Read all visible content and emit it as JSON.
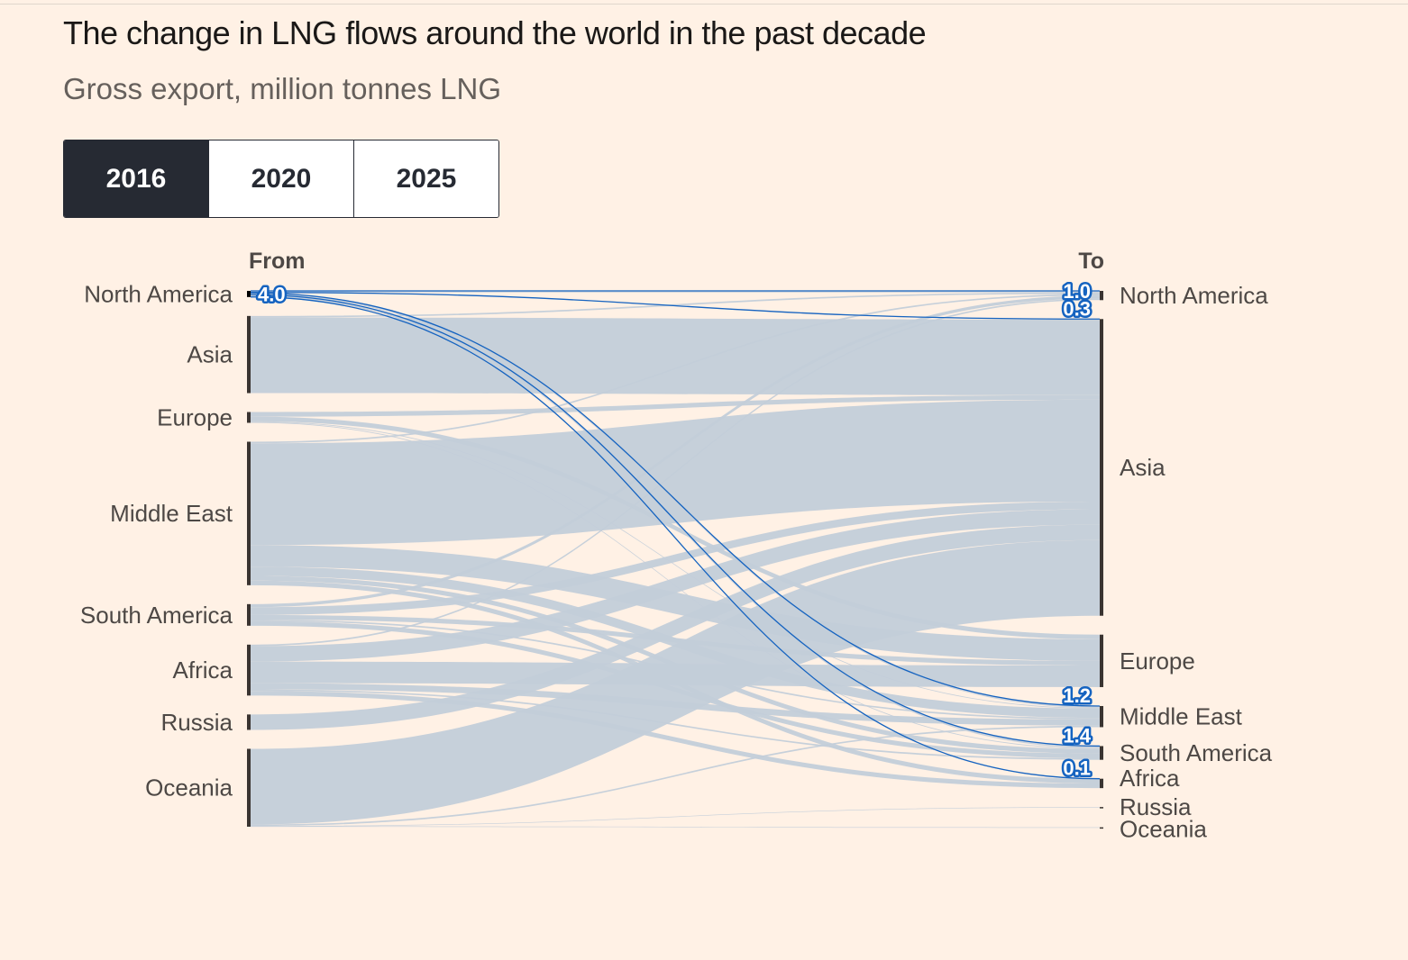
{
  "title": "The change in LNG flows around the world in the past decade",
  "subtitle": "Gross export, million tonnes LNG",
  "tabs": [
    {
      "label": "2016",
      "active": true
    },
    {
      "label": "2020",
      "active": false
    },
    {
      "label": "2025",
      "active": false
    }
  ],
  "chart_data": {
    "type": "sankey",
    "year": "2016",
    "from_label": "From",
    "to_label": "To",
    "units": "million tonnes LNG",
    "regions": [
      "North America",
      "Asia",
      "Europe",
      "Middle East",
      "South America",
      "Africa",
      "Russia",
      "Oceania"
    ],
    "highlight_source": "North America",
    "highlight_color": "#1563c0",
    "flow_color": "#c3cdd9",
    "source_total_label": "4.0",
    "flows": [
      {
        "from": "North America",
        "to": "North America",
        "value": 1.0,
        "label": "1.0"
      },
      {
        "from": "North America",
        "to": "Asia",
        "value": 0.3,
        "label": "0.3"
      },
      {
        "from": "North America",
        "to": "Middle East",
        "value": 1.2,
        "label": "1.2"
      },
      {
        "from": "North America",
        "to": "South America",
        "value": 1.4,
        "label": "1.4"
      },
      {
        "from": "North America",
        "to": "Africa",
        "value": 0.1,
        "label": "0.1"
      },
      {
        "from": "Asia",
        "to": "North America",
        "value": 1
      },
      {
        "from": "Asia",
        "to": "Asia",
        "value": 49
      },
      {
        "from": "Europe",
        "to": "Asia",
        "value": 3
      },
      {
        "from": "Europe",
        "to": "Europe",
        "value": 3
      },
      {
        "from": "Europe",
        "to": "Middle East",
        "value": 0.5
      },
      {
        "from": "Europe",
        "to": "South America",
        "value": 0.5
      },
      {
        "from": "Middle East",
        "to": "North America",
        "value": 1
      },
      {
        "from": "Middle East",
        "to": "Asia",
        "value": 66
      },
      {
        "from": "Middle East",
        "to": "Europe",
        "value": 14
      },
      {
        "from": "Middle East",
        "to": "Middle East",
        "value": 6
      },
      {
        "from": "Middle East",
        "to": "South America",
        "value": 3
      },
      {
        "from": "Middle East",
        "to": "Africa",
        "value": 3
      },
      {
        "from": "South America",
        "to": "North America",
        "value": 2
      },
      {
        "from": "South America",
        "to": "Asia",
        "value": 5
      },
      {
        "from": "South America",
        "to": "Europe",
        "value": 3
      },
      {
        "from": "South America",
        "to": "Middle East",
        "value": 1
      },
      {
        "from": "South America",
        "to": "South America",
        "value": 3
      },
      {
        "from": "Africa",
        "to": "North America",
        "value": 1
      },
      {
        "from": "Africa",
        "to": "Asia",
        "value": 10
      },
      {
        "from": "Africa",
        "to": "Europe",
        "value": 14
      },
      {
        "from": "Africa",
        "to": "Middle East",
        "value": 4
      },
      {
        "from": "Africa",
        "to": "South America",
        "value": 1
      },
      {
        "from": "Africa",
        "to": "Africa",
        "value": 3
      },
      {
        "from": "Russia",
        "to": "Asia",
        "value": 10
      },
      {
        "from": "Oceania",
        "to": "Asia",
        "value": 49
      },
      {
        "from": "Oceania",
        "to": "Middle East",
        "value": 1
      },
      {
        "from": "Oceania",
        "to": "Russia",
        "value": 0.2
      },
      {
        "from": "Oceania",
        "to": "Oceania",
        "value": 0.3
      }
    ]
  }
}
